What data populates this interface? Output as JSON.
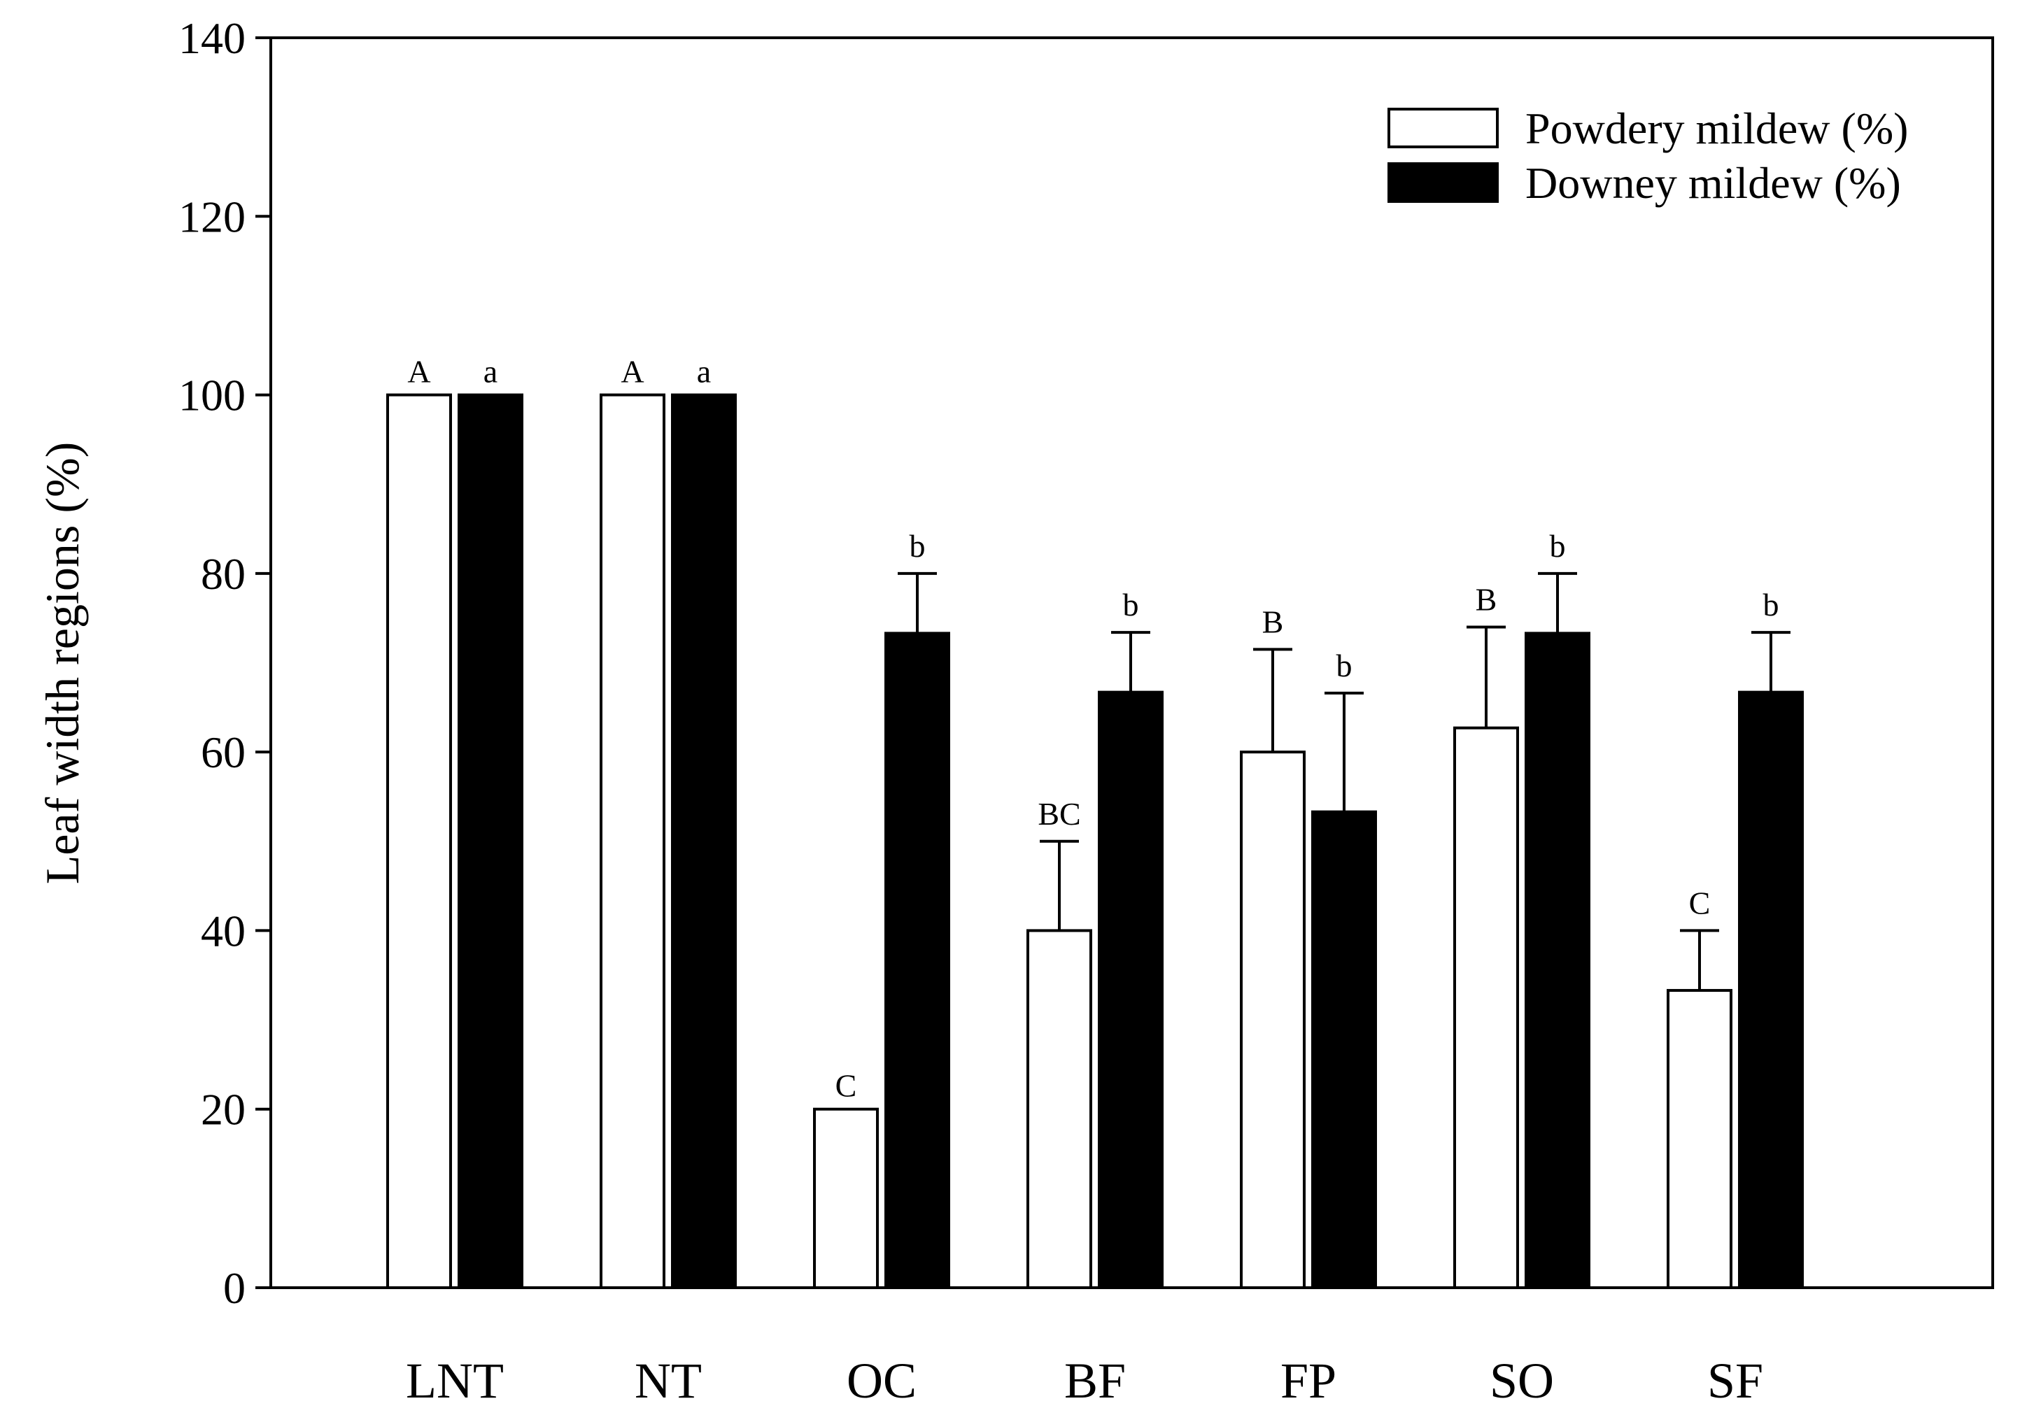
{
  "chart_data": {
    "type": "bar",
    "title": "",
    "xlabel": "",
    "ylabel": "Leaf width regions (%)",
    "ylim": [
      0,
      140
    ],
    "yticks": [
      0,
      20,
      40,
      60,
      80,
      100,
      120,
      140
    ],
    "grid": false,
    "legend_position": "top-right",
    "categories": [
      "LNT",
      "NT",
      "OC",
      "BF",
      "FP",
      "SO",
      "SF"
    ],
    "series": [
      {
        "name": "Powdery mildew (%)",
        "fill": "#ffffff",
        "values": [
          100,
          100,
          20,
          40,
          60,
          62.7,
          33.3
        ],
        "errors": [
          0,
          0,
          0,
          10,
          11.5,
          11.3,
          6.7
        ],
        "letters": [
          "A",
          "A",
          "C",
          "BC",
          "B",
          "B",
          "C"
        ]
      },
      {
        "name": "Downey mildew (%)",
        "fill": "#000000",
        "values": [
          100,
          100,
          73.3,
          66.7,
          53.3,
          73.3,
          66.7
        ],
        "errors": [
          0,
          0,
          6.7,
          6.7,
          13.3,
          6.7,
          6.7
        ],
        "letters": [
          "a",
          "a",
          "b",
          "b",
          "b",
          "b",
          "b"
        ]
      }
    ]
  }
}
